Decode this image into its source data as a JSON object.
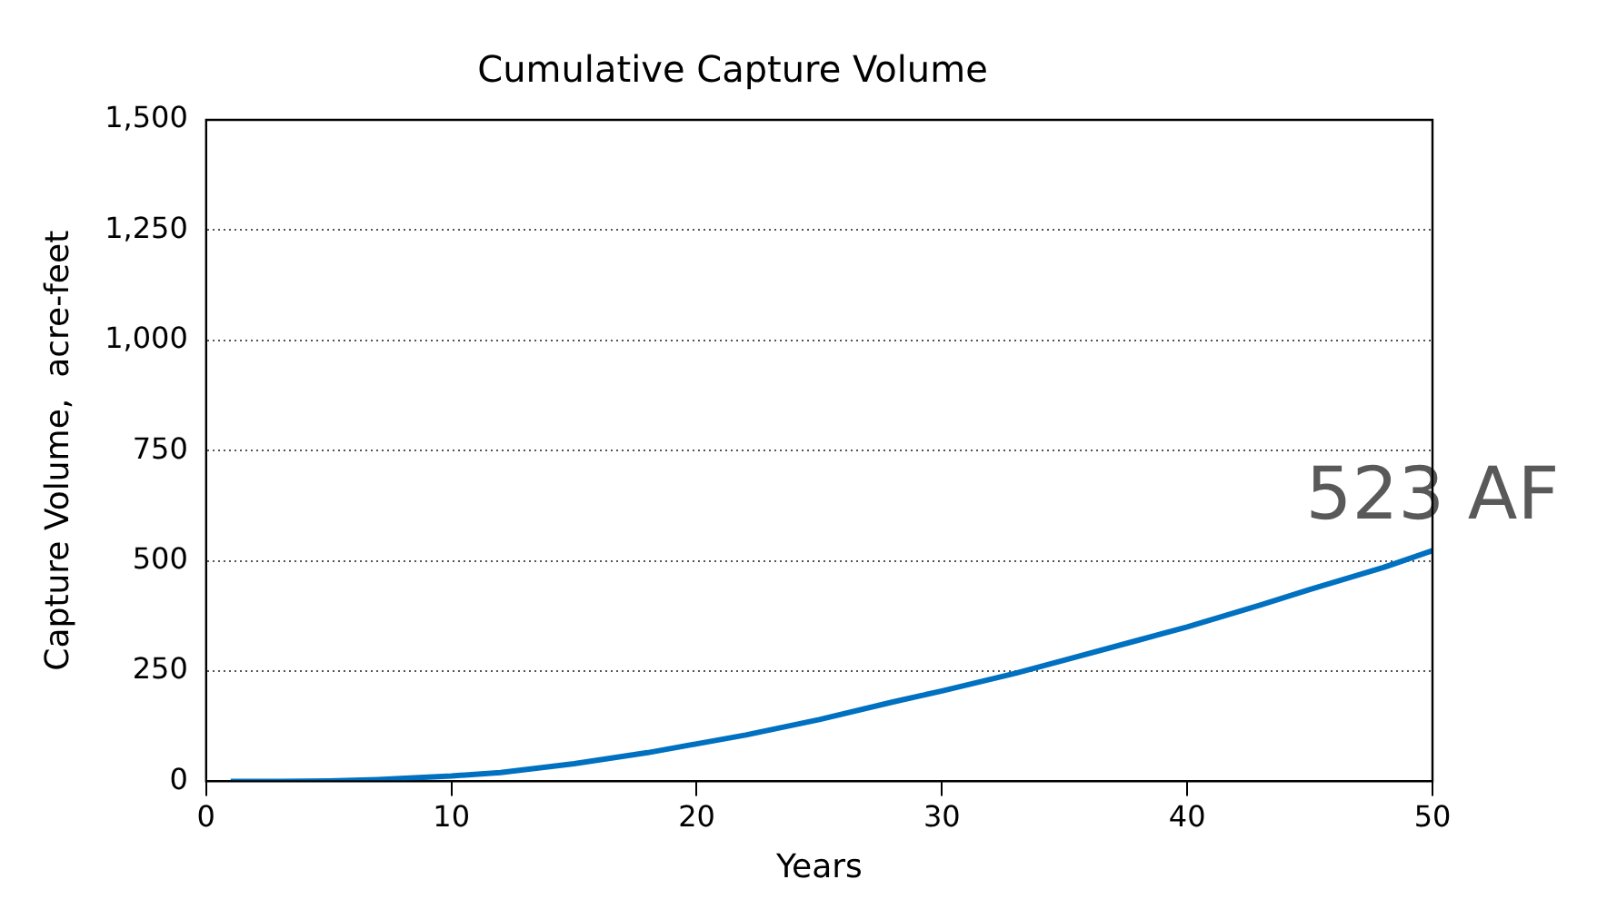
{
  "chart_data": {
    "type": "line",
    "title": "Cumulative Capture Volume",
    "xlabel": "Years",
    "ylabel": "Capture Volume,  acre-feet",
    "x": [
      1,
      3,
      5,
      7,
      10,
      12,
      15,
      18,
      20,
      22,
      25,
      28,
      30,
      33,
      35,
      38,
      40,
      43,
      45,
      48,
      50
    ],
    "series": [
      {
        "color": "#0070c0",
        "values": [
          0,
          0,
          1,
          4,
          12,
          20,
          40,
          65,
          85,
          105,
          140,
          180,
          205,
          245,
          275,
          320,
          350,
          400,
          435,
          485,
          523
        ]
      }
    ],
    "xlim": [
      0,
      50
    ],
    "xticks": [
      0,
      10,
      20,
      30,
      40,
      50
    ],
    "ylim": [
      0,
      1500
    ],
    "yticks": [
      {
        "value": 0,
        "label": "0"
      },
      {
        "value": 250,
        "label": "250"
      },
      {
        "value": 500,
        "label": "500"
      },
      {
        "value": 750,
        "label": "750"
      },
      {
        "value": 1000,
        "label": "1,000"
      },
      {
        "value": 1250,
        "label": "1,250"
      },
      {
        "value": 1500,
        "label": "1,500"
      }
    ],
    "grid": "y",
    "legend": false,
    "marker": "none",
    "line_style": "solid",
    "annotations": [
      {
        "text": "523 AF",
        "x": 50,
        "y": 523
      }
    ]
  }
}
